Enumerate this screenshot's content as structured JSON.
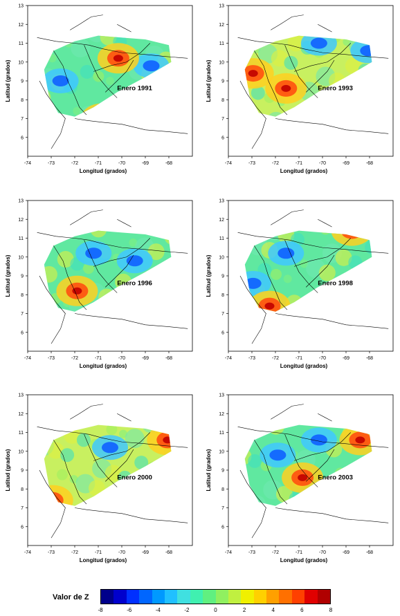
{
  "axes": {
    "xlabel": "Longitud (grados)",
    "ylabel": "Latitud (grados)",
    "xticks": [
      "-74",
      "-73",
      "-72",
      "-71",
      "-70",
      "-69",
      "-68"
    ],
    "yticks": [
      "6",
      "7",
      "8",
      "9",
      "10",
      "11",
      "12",
      "13"
    ]
  },
  "panels": [
    {
      "label": "Enero 1991",
      "warm": [
        [
          0.55,
          0.35
        ],
        [
          0.45,
          0.75
        ]
      ],
      "cool": [
        [
          0.2,
          0.5
        ],
        [
          0.75,
          0.4
        ]
      ],
      "dominant": "green"
    },
    {
      "label": "Enero 1993",
      "warm": [
        [
          0.15,
          0.45
        ],
        [
          0.35,
          0.55
        ]
      ],
      "cool": [
        [
          0.85,
          0.3
        ],
        [
          0.55,
          0.25
        ]
      ],
      "dominant": "yellow"
    },
    {
      "label": "Enero 1996",
      "warm": [
        [
          0.3,
          0.6
        ],
        [
          0.55,
          0.8
        ]
      ],
      "cool": [
        [
          0.65,
          0.4
        ],
        [
          0.4,
          0.35
        ]
      ],
      "dominant": "green"
    },
    {
      "label": "Enero 1998",
      "warm": [
        [
          0.25,
          0.7
        ],
        [
          0.75,
          0.2
        ]
      ],
      "cool": [
        [
          0.35,
          0.35
        ],
        [
          0.15,
          0.55
        ]
      ],
      "dominant": "green"
    },
    {
      "label": "Enero 2000",
      "warm": [
        [
          0.85,
          0.3
        ],
        [
          0.15,
          0.7
        ]
      ],
      "cool": [
        [
          0.5,
          0.35
        ]
      ],
      "dominant": "yellow"
    },
    {
      "label": "Enero 2003",
      "warm": [
        [
          0.8,
          0.3
        ],
        [
          0.45,
          0.55
        ]
      ],
      "cool": [
        [
          0.3,
          0.4
        ],
        [
          0.55,
          0.3
        ]
      ],
      "dominant": "green"
    }
  ],
  "legend": {
    "title": "Valor de Z",
    "ticks": [
      "-8",
      "-6",
      "-4",
      "-2",
      "0",
      "2",
      "4",
      "6",
      "8"
    ],
    "colors": [
      "#00008b",
      "#0000cd",
      "#0030ff",
      "#0066ff",
      "#0099ff",
      "#20c0ff",
      "#40e0e0",
      "#40f0b0",
      "#60f080",
      "#90f060",
      "#c0f040",
      "#f0f000",
      "#ffd000",
      "#ffa000",
      "#ff7000",
      "#ff4000",
      "#e00000",
      "#b00000"
    ]
  }
}
